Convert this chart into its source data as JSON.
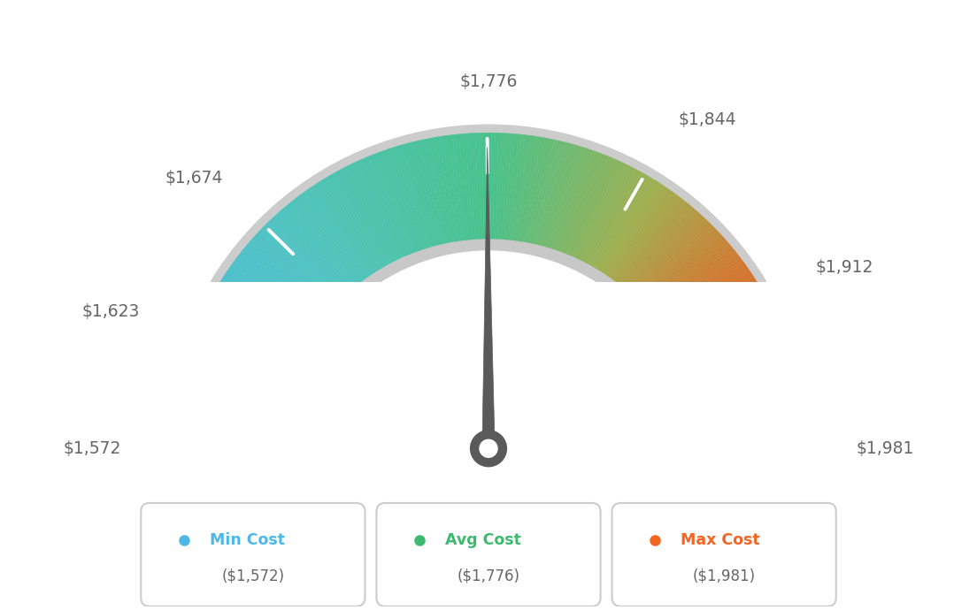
{
  "min_val": 1572,
  "max_val": 1981,
  "avg_val": 1776,
  "labels": {
    "min": "$1,572",
    "max": "$1,981",
    "avg": "$1,776",
    "v1623": "$1,623",
    "v1674": "$1,674",
    "v1844": "$1,844",
    "v1912": "$1,912"
  },
  "legend": [
    {
      "label": "Min Cost",
      "value": "($1,572)",
      "color": "#4db8e8"
    },
    {
      "label": "Avg Cost",
      "value": "($1,776)",
      "color": "#3dba6f"
    },
    {
      "label": "Max Cost",
      "value": "($1,981)",
      "color": "#f26522"
    }
  ],
  "background_color": "#ffffff",
  "colors_positions": [
    [
      0.0,
      [
        74,
        184,
        232
      ]
    ],
    [
      0.25,
      [
        80,
        195,
        195
      ]
    ],
    [
      0.5,
      [
        72,
        194,
        140
      ]
    ],
    [
      0.68,
      [
        160,
        175,
        80
      ]
    ],
    [
      0.8,
      [
        210,
        120,
        50
      ]
    ],
    [
      1.0,
      [
        232,
        80,
        25
      ]
    ]
  ]
}
